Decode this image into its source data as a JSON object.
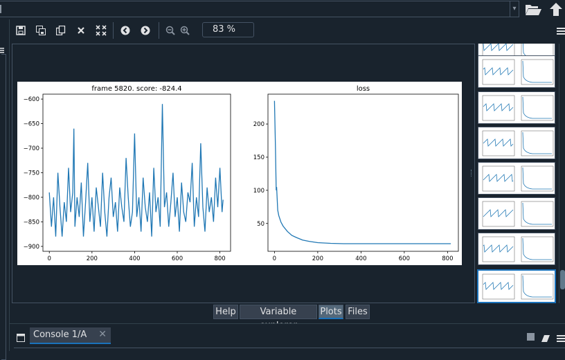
{
  "path_field": {
    "value": ""
  },
  "toolbar": {
    "zoom": "83 %"
  },
  "tabs": [
    {
      "label": "Help",
      "active": false
    },
    {
      "label": "Variable explorer",
      "active": false
    },
    {
      "label": "Plots",
      "active": true
    },
    {
      "label": "Files",
      "active": false
    }
  ],
  "console": {
    "tab_label": "Console 1/A",
    "close_icon": "close-icon"
  },
  "colors": {
    "background": "#19232d",
    "border": "#455364",
    "accent": "#1a72bb",
    "line": "#1f77b4"
  },
  "chart_data": [
    {
      "type": "line",
      "title": "frame 5820. score: -824.4",
      "xlabel": "",
      "ylabel": "",
      "xlim": [
        -30,
        850
      ],
      "ylim": [
        -910,
        -590
      ],
      "x_ticks": [
        0,
        200,
        400,
        600,
        800
      ],
      "y_ticks": [
        -600,
        -650,
        -700,
        -750,
        -800,
        -850,
        -900
      ],
      "series": [
        {
          "values_note": "",
          "points": [
            [
              0,
              -790
            ],
            [
              10,
              -860
            ],
            [
              20,
              -800
            ],
            [
              30,
              -880
            ],
            [
              40,
              -750
            ],
            [
              50,
              -820
            ],
            [
              60,
              -880
            ],
            [
              70,
              -810
            ],
            [
              80,
              -850
            ],
            [
              90,
              -740
            ],
            [
              100,
              -830
            ],
            [
              110,
              -790
            ],
            [
              115,
              -660
            ],
            [
              120,
              -860
            ],
            [
              130,
              -800
            ],
            [
              140,
              -840
            ],
            [
              150,
              -770
            ],
            [
              160,
              -880
            ],
            [
              170,
              -810
            ],
            [
              180,
              -730
            ],
            [
              190,
              -850
            ],
            [
              200,
              -800
            ],
            [
              210,
              -870
            ],
            [
              220,
              -780
            ],
            [
              230,
              -820
            ],
            [
              240,
              -860
            ],
            [
              250,
              -750
            ],
            [
              260,
              -830
            ],
            [
              270,
              -880
            ],
            [
              280,
              -800
            ],
            [
              290,
              -760
            ],
            [
              300,
              -840
            ],
            [
              310,
              -810
            ],
            [
              320,
              -870
            ],
            [
              330,
              -780
            ],
            [
              340,
              -820
            ],
            [
              350,
              -850
            ],
            [
              360,
              -720
            ],
            [
              370,
              -800
            ],
            [
              380,
              -860
            ],
            [
              390,
              -830
            ],
            [
              400,
              -670
            ],
            [
              410,
              -840
            ],
            [
              420,
              -800
            ],
            [
              430,
              -870
            ],
            [
              440,
              -760
            ],
            [
              450,
              -820
            ],
            [
              460,
              -850
            ],
            [
              470,
              -790
            ],
            [
              480,
              -880
            ],
            [
              490,
              -740
            ],
            [
              500,
              -830
            ],
            [
              510,
              -800
            ],
            [
              520,
              -860
            ],
            [
              530,
              -610
            ],
            [
              540,
              -820
            ],
            [
              550,
              -790
            ],
            [
              560,
              -860
            ],
            [
              570,
              -810
            ],
            [
              580,
              -750
            ],
            [
              590,
              -840
            ],
            [
              600,
              -800
            ],
            [
              610,
              -870
            ],
            [
              620,
              -770
            ],
            [
              630,
              -830
            ],
            [
              640,
              -850
            ],
            [
              650,
              -790
            ],
            [
              660,
              -810
            ],
            [
              670,
              -730
            ],
            [
              680,
              -860
            ],
            [
              690,
              -800
            ],
            [
              700,
              -840
            ],
            [
              710,
              -690
            ],
            [
              720,
              -820
            ],
            [
              730,
              -870
            ],
            [
              740,
              -780
            ],
            [
              750,
              -830
            ],
            [
              760,
              -800
            ],
            [
              770,
              -850
            ],
            [
              780,
              -760
            ],
            [
              790,
              -820
            ],
            [
              800,
              -740
            ],
            [
              810,
              -830
            ],
            [
              815,
              -805
            ]
          ]
        }
      ]
    },
    {
      "type": "line",
      "title": "loss",
      "xlabel": "",
      "ylabel": "",
      "xlim": [
        -30,
        850
      ],
      "ylim": [
        8,
        245
      ],
      "x_ticks": [
        0,
        200,
        400,
        600,
        800
      ],
      "y_ticks": [
        50,
        100,
        150,
        200
      ],
      "series": [
        {
          "points": [
            [
              0,
              235
            ],
            [
              5,
              160
            ],
            [
              8,
              100
            ],
            [
              10,
              105
            ],
            [
              15,
              70
            ],
            [
              20,
              62
            ],
            [
              30,
              52
            ],
            [
              40,
              46
            ],
            [
              60,
              38
            ],
            [
              80,
              32
            ],
            [
              100,
              29
            ],
            [
              130,
              25
            ],
            [
              160,
              23
            ],
            [
              200,
              21
            ],
            [
              260,
              20
            ],
            [
              320,
              19.5
            ],
            [
              400,
              19.5
            ],
            [
              500,
              19.5
            ],
            [
              600,
              19.5
            ],
            [
              700,
              19.5
            ],
            [
              815,
              19.5
            ]
          ]
        }
      ]
    }
  ]
}
